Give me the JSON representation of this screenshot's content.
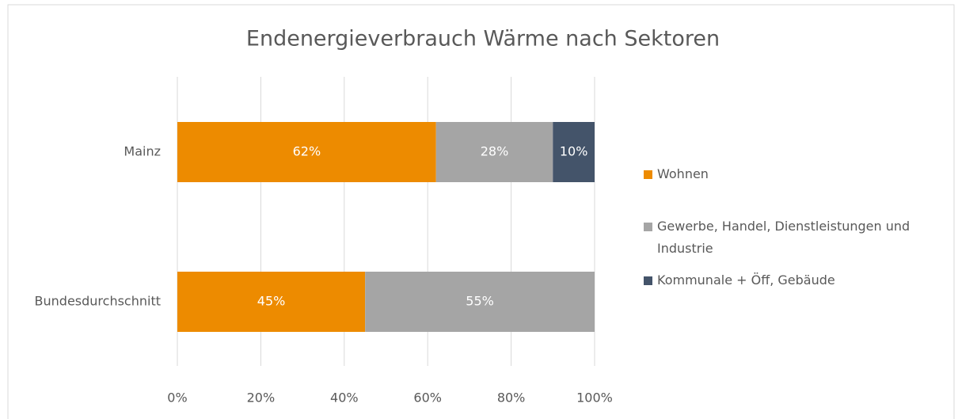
{
  "chart_data": {
    "type": "stacked_bar_horizontal",
    "title": "Endenergieverbrauch Wärme nach Sektoren",
    "categories": [
      "Mainz",
      "Bundesdurchschnitt"
    ],
    "series": [
      {
        "name": "Wohnen",
        "color": "#ed8b00",
        "values": [
          62,
          45
        ],
        "value_labels": [
          "62%",
          "45%"
        ]
      },
      {
        "name": "Gewerbe, Handel, Dienstleistungen und Industrie",
        "color": "#a5a5a5",
        "values": [
          28,
          55
        ],
        "value_labels": [
          "28%",
          "55%"
        ]
      },
      {
        "name": "Kommunale + Öff, Gebäude",
        "color": "#44546a",
        "values": [
          10,
          null
        ],
        "value_labels": [
          "10%",
          null
        ]
      }
    ],
    "xlim": [
      0,
      100
    ],
    "xticks": [
      {
        "value": 0,
        "label": "0%"
      },
      {
        "value": 20,
        "label": "20%"
      },
      {
        "value": 40,
        "label": "40%"
      },
      {
        "value": 60,
        "label": "60%"
      },
      {
        "value": 80,
        "label": "80%"
      },
      {
        "value": 100,
        "label": "100%"
      }
    ],
    "grid": true,
    "legend": "right"
  }
}
